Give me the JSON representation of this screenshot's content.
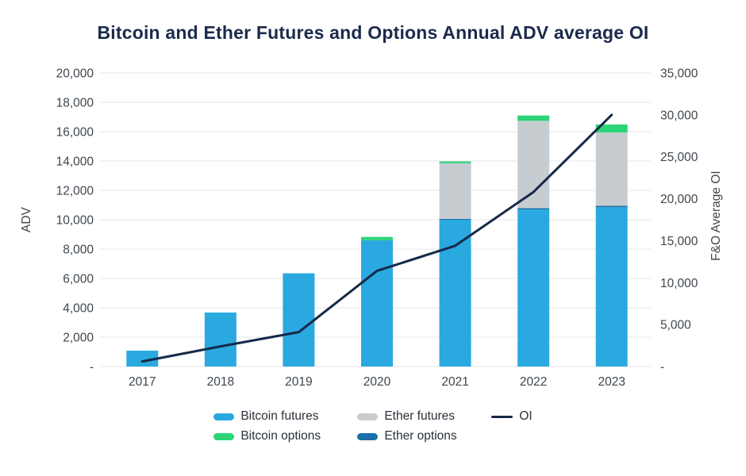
{
  "chart_data": {
    "type": "bar",
    "subtype": "stacked-bars-with-line-overlay-dual-axis",
    "title": "Bitcoin and Ether Futures and Options Annual ADV average OI",
    "categories": [
      "2017",
      "2018",
      "2019",
      "2020",
      "2021",
      "2022",
      "2023"
    ],
    "bar_series": [
      {
        "name": "Bitcoin futures",
        "color": "#29A9DF",
        "values": [
          1080,
          3680,
          6350,
          8600,
          10000,
          10700,
          10850
        ]
      },
      {
        "name": "Ether options",
        "color": "#1C6FA8",
        "values": [
          0,
          0,
          0,
          0,
          60,
          90,
          100
        ]
      },
      {
        "name": "Ether futures",
        "color": "#C7CCD0",
        "values": [
          0,
          0,
          0,
          0,
          3790,
          5950,
          5000
        ]
      },
      {
        "name": "Bitcoin options",
        "color": "#2BD476",
        "values": [
          0,
          0,
          0,
          230,
          120,
          360,
          540
        ]
      }
    ],
    "line_series": {
      "name": "OI",
      "color": "#16294A",
      "values": [
        600,
        2400,
        4100,
        11400,
        14400,
        20800,
        30000
      ]
    },
    "left_axis": {
      "title": "ADV",
      "min": 0,
      "max": 20000,
      "step": 2000,
      "zero_label": "-"
    },
    "right_axis": {
      "title": "F&O Average OI",
      "min": 0,
      "max": 35000,
      "step": 5000,
      "zero_label": "-"
    },
    "legend_rows": [
      [
        "Bitcoin futures",
        "Ether futures",
        "OI"
      ],
      [
        "Bitcoin options",
        "Ether options"
      ]
    ],
    "grid": true,
    "legend_position": "bottom"
  },
  "style": {
    "title_color": "#1B2B4B",
    "axis_text_color": "#3E464D",
    "grid_color": "#E4E6E8",
    "background": "#FFFFFF"
  }
}
